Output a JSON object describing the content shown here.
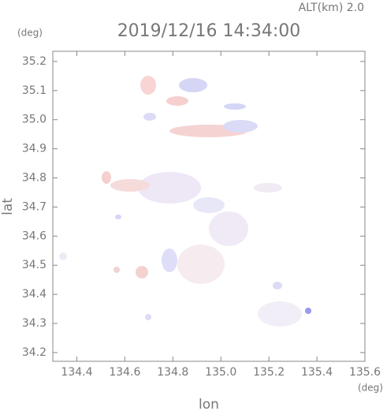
{
  "chart_data": {
    "type": "field",
    "altitude_label": "ALT(km) 2.0",
    "title": "2019/12/16 14:34:00",
    "y_unit": "(deg)",
    "x_unit": "(deg)",
    "xlabel": "lon",
    "ylabel": "lat",
    "xlim": [
      134.3,
      135.6
    ],
    "xticks": [
      134.4,
      134.6,
      134.8,
      {
        "value": 135,
        "label": "135.0"
      },
      135.2,
      135.4,
      135.6
    ],
    "ylim": [
      34.17,
      35.235
    ],
    "yticks": [
      34.2,
      34.3,
      34.4,
      34.5,
      34.6,
      34.7,
      34.8,
      34.9,
      {
        "value": 35,
        "label": "35.0"
      },
      35.1,
      35.2
    ],
    "color": "#888888"
  }
}
